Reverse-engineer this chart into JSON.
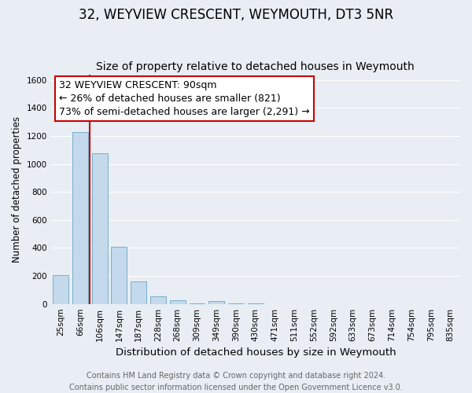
{
  "title": "32, WEYVIEW CRESCENT, WEYMOUTH, DT3 5NR",
  "subtitle": "Size of property relative to detached houses in Weymouth",
  "xlabel": "Distribution of detached houses by size in Weymouth",
  "ylabel": "Number of detached properties",
  "categories": [
    "25sqm",
    "66sqm",
    "106sqm",
    "147sqm",
    "187sqm",
    "228sqm",
    "268sqm",
    "309sqm",
    "349sqm",
    "390sqm",
    "430sqm",
    "471sqm",
    "511sqm",
    "552sqm",
    "592sqm",
    "633sqm",
    "673sqm",
    "714sqm",
    "754sqm",
    "795sqm",
    "835sqm"
  ],
  "values": [
    205,
    1225,
    1075,
    410,
    160,
    55,
    25,
    5,
    20,
    5,
    5,
    0,
    0,
    0,
    0,
    0,
    0,
    0,
    0,
    0,
    0
  ],
  "bar_color": "#c5d9ec",
  "bar_edge_color": "#7aafc8",
  "annotation_line1": "32 WEYVIEW CRESCENT: 90sqm",
  "annotation_line2": "← 26% of detached houses are smaller (821)",
  "annotation_line3": "73% of semi-detached houses are larger (2,291) →",
  "annotation_box_color": "#ffffff",
  "annotation_box_edge_color": "#cc0000",
  "vline_color": "#cc0000",
  "vline_x": 1.5,
  "ylim": [
    0,
    1640
  ],
  "yticks": [
    0,
    200,
    400,
    600,
    800,
    1000,
    1200,
    1400,
    1600
  ],
  "footer_line1": "Contains HM Land Registry data © Crown copyright and database right 2024.",
  "footer_line2": "Contains public sector information licensed under the Open Government Licence v3.0.",
  "background_color": "#e8eef4",
  "grid_color": "#ffffff",
  "title_fontsize": 12,
  "subtitle_fontsize": 10,
  "xlabel_fontsize": 9.5,
  "ylabel_fontsize": 8.5,
  "tick_fontsize": 7.5,
  "footer_fontsize": 7,
  "annotation_fontsize": 9
}
